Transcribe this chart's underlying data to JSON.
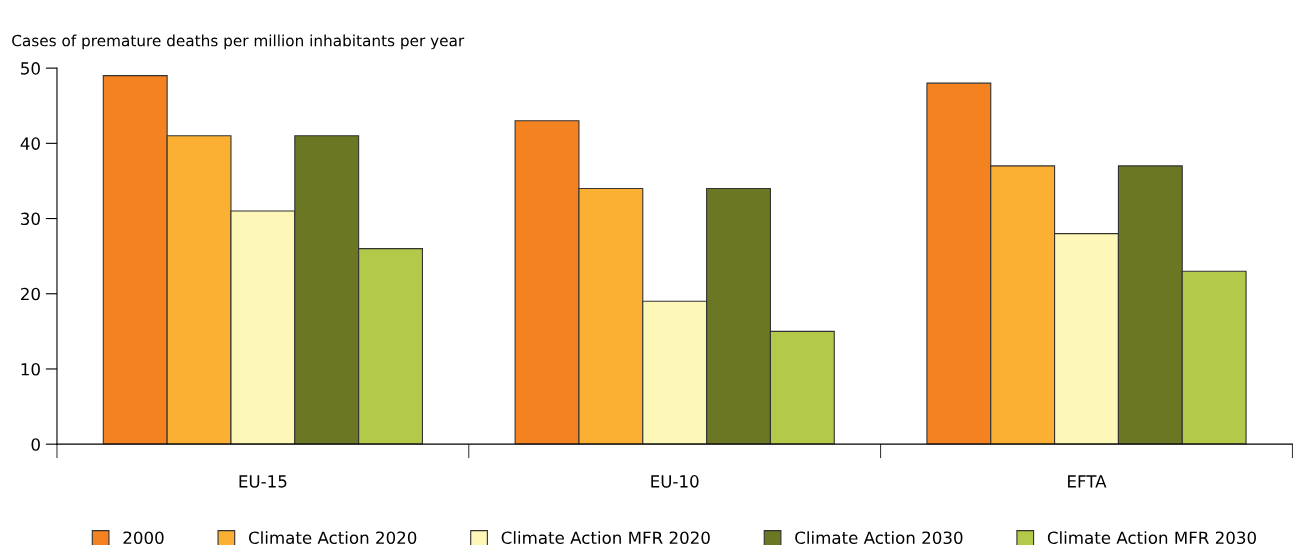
{
  "chart_data": {
    "type": "bar",
    "ylabel": "Cases of premature deaths per million inhabitants per year",
    "categories": [
      "EU-15",
      "EU-10",
      "EFTA"
    ],
    "series": [
      {
        "name": "2000",
        "color": "#f58220",
        "values": [
          49,
          43,
          48
        ]
      },
      {
        "name": "Climate Action 2020",
        "color": "#fbb034",
        "values": [
          41,
          34,
          37
        ]
      },
      {
        "name": "Climate Action MFR 2020",
        "color": "#fdf8b8",
        "values": [
          31,
          19,
          28
        ]
      },
      {
        "name": "Climate Action 2030",
        "color": "#6b7722",
        "values": [
          41,
          34,
          37
        ]
      },
      {
        "name": "Climate Action MFR 2030",
        "color": "#b3c94a",
        "values": [
          26,
          15,
          23
        ]
      }
    ],
    "ylim": [
      0,
      50
    ],
    "yticks": [
      0,
      10,
      20,
      30,
      40,
      50
    ],
    "grid": false,
    "legend": "bottom"
  }
}
